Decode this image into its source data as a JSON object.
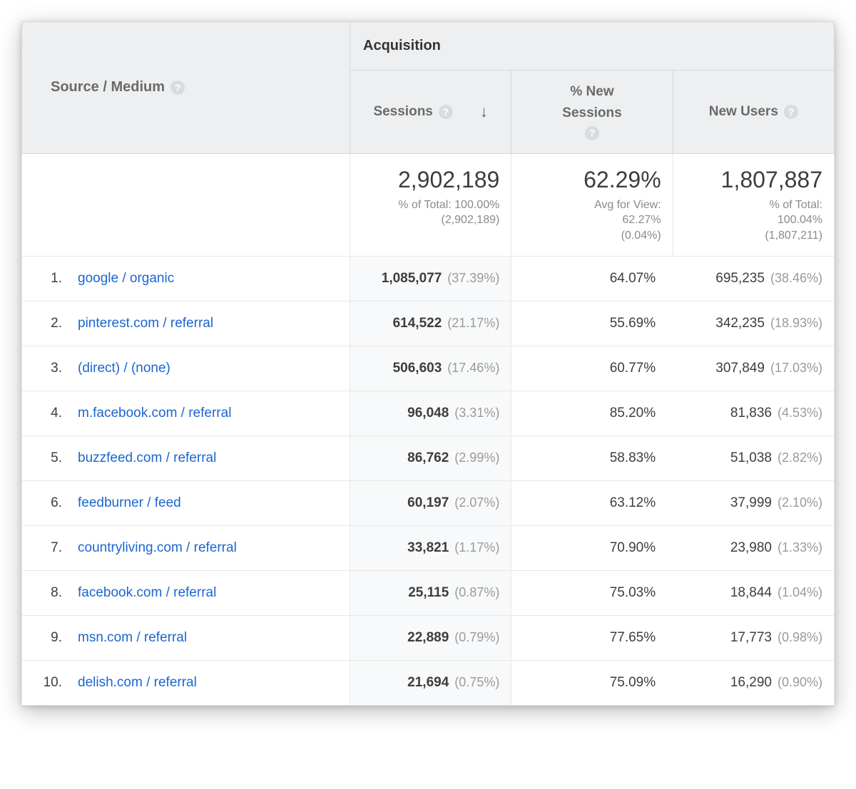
{
  "table": {
    "header": {
      "source_medium": "Source / Medium",
      "acquisition_group": "Acquisition",
      "columns": {
        "sessions": "Sessions",
        "pct_new_sessions_line1": "% New",
        "pct_new_sessions_line2": "Sessions",
        "new_users": "New Users"
      }
    },
    "summary": {
      "sessions": {
        "value": "2,902,189",
        "sub1": "% of Total: 100.00%",
        "sub2": "(2,902,189)"
      },
      "pct_new": {
        "value": "62.29%",
        "sub1": "Avg for View:",
        "sub2": "62.27%",
        "sub3": "(0.04%)"
      },
      "new_users": {
        "value": "1,807,887",
        "sub1": "% of Total:",
        "sub2": "100.04%",
        "sub3": "(1,807,211)"
      }
    },
    "rows": [
      {
        "idx": "1.",
        "source": "google / organic",
        "sessions": "1,085,077",
        "sessions_pct": "(37.39%)",
        "pct_new": "64.07%",
        "new_users": "695,235",
        "new_users_pct": "(38.46%)"
      },
      {
        "idx": "2.",
        "source": "pinterest.com / referral",
        "sessions": "614,522",
        "sessions_pct": "(21.17%)",
        "pct_new": "55.69%",
        "new_users": "342,235",
        "new_users_pct": "(18.93%)"
      },
      {
        "idx": "3.",
        "source": "(direct) / (none)",
        "sessions": "506,603",
        "sessions_pct": "(17.46%)",
        "pct_new": "60.77%",
        "new_users": "307,849",
        "new_users_pct": "(17.03%)"
      },
      {
        "idx": "4.",
        "source": "m.facebook.com / referral",
        "sessions": "96,048",
        "sessions_pct": "(3.31%)",
        "pct_new": "85.20%",
        "new_users": "81,836",
        "new_users_pct": "(4.53%)"
      },
      {
        "idx": "5.",
        "source": "buzzfeed.com / referral",
        "sessions": "86,762",
        "sessions_pct": "(2.99%)",
        "pct_new": "58.83%",
        "new_users": "51,038",
        "new_users_pct": "(2.82%)"
      },
      {
        "idx": "6.",
        "source": "feedburner / feed",
        "sessions": "60,197",
        "sessions_pct": "(2.07%)",
        "pct_new": "63.12%",
        "new_users": "37,999",
        "new_users_pct": "(2.10%)"
      },
      {
        "idx": "7.",
        "source": "countryliving.com / referral",
        "sessions": "33,821",
        "sessions_pct": "(1.17%)",
        "pct_new": "70.90%",
        "new_users": "23,980",
        "new_users_pct": "(1.33%)"
      },
      {
        "idx": "8.",
        "source": "facebook.com / referral",
        "sessions": "25,115",
        "sessions_pct": "(0.87%)",
        "pct_new": "75.03%",
        "new_users": "18,844",
        "new_users_pct": "(1.04%)"
      },
      {
        "idx": "9.",
        "source": "msn.com / referral",
        "sessions": "22,889",
        "sessions_pct": "(0.79%)",
        "pct_new": "77.65%",
        "new_users": "17,773",
        "new_users_pct": "(0.98%)"
      },
      {
        "idx": "10.",
        "source": "delish.com / referral",
        "sessions": "21,694",
        "sessions_pct": "(0.75%)",
        "pct_new": "75.09%",
        "new_users": "16,290",
        "new_users_pct": "(0.90%)"
      }
    ]
  },
  "colors": {
    "header_bg": "#edeff1",
    "border": "#d6d6d6",
    "row_border": "#e7e7e7",
    "link": "#1a66d1",
    "muted": "#9a9a9a",
    "highlight_col_bg": "#f8f9fa"
  }
}
